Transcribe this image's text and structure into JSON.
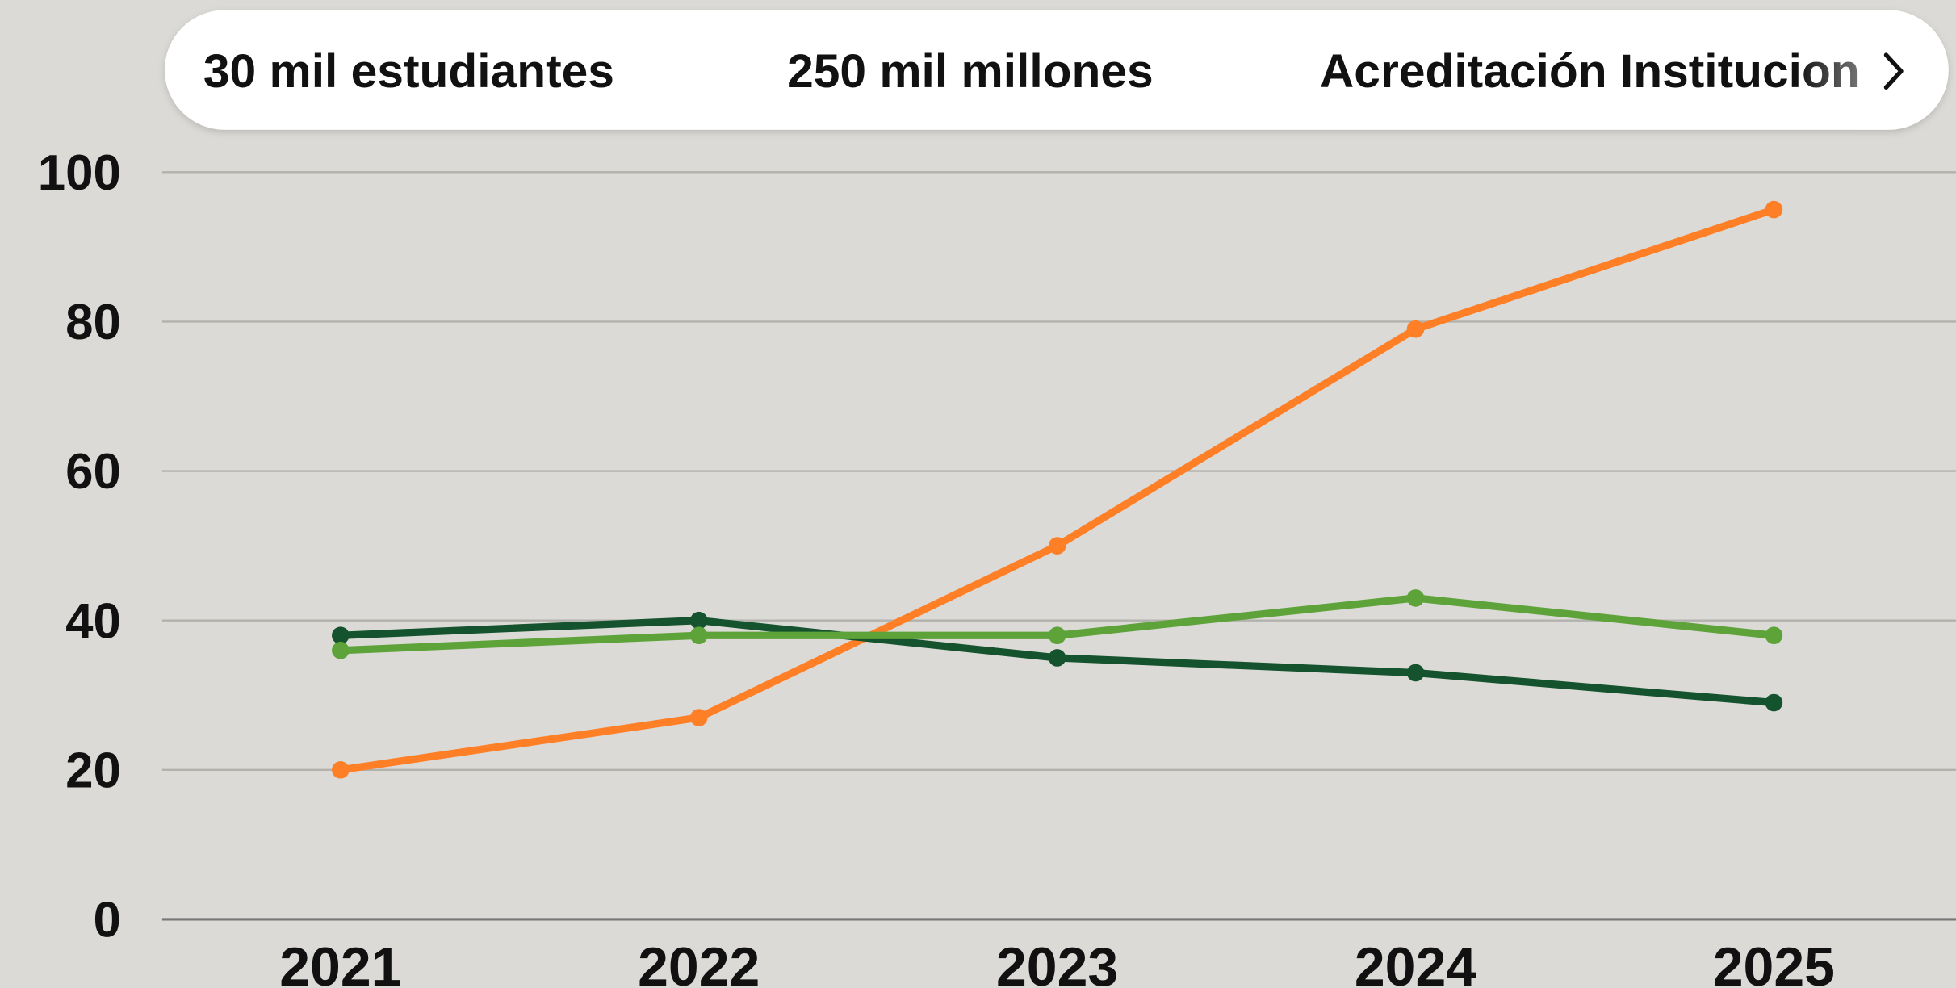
{
  "tabs": [
    "30 mil estudiantes",
    "250 mil millones",
    "Acreditación Institucion"
  ],
  "chart_data": {
    "type": "line",
    "categories": [
      "2021",
      "2022",
      "2023",
      "2024",
      "2025"
    ],
    "series": [
      {
        "color": "#ff7f27",
        "values": [
          20,
          27,
          50,
          79,
          95
        ]
      },
      {
        "color": "#14532d",
        "values": [
          38,
          40,
          35,
          33,
          29
        ]
      },
      {
        "color": "#5da33a",
        "values": [
          36,
          38,
          38,
          43,
          38
        ]
      }
    ],
    "ylim": [
      0,
      100
    ],
    "yticks": [
      0,
      20,
      40,
      60,
      80,
      100
    ],
    "grid": true
  }
}
